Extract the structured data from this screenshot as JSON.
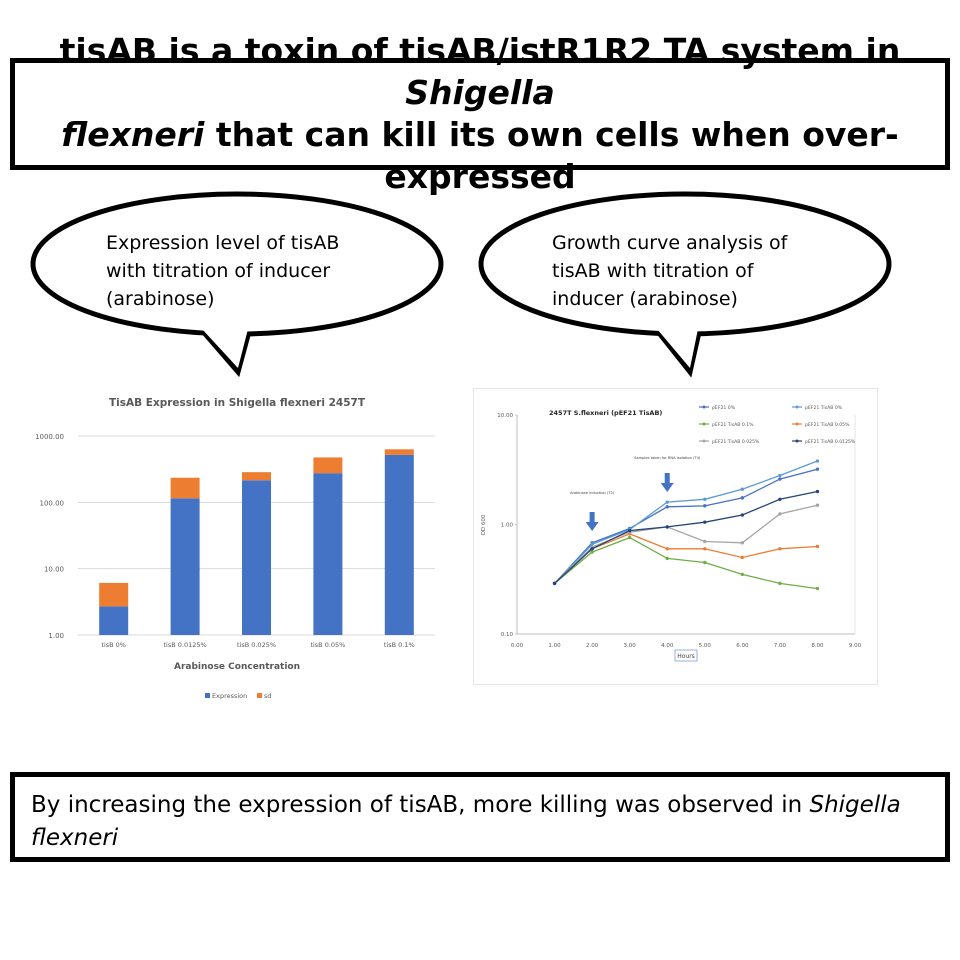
{
  "title": {
    "part1": "tisAB is a toxin of tisAB/istR1R2 TA system in ",
    "italic1": "Shigella",
    "italic2": "flexneri",
    "part2": " that can kill its own cells when over-expressed"
  },
  "bubble_left": {
    "line1": "Expression level of tisAB",
    "line2": "with titration of inducer",
    "line3": "(arabinose)"
  },
  "bubble_right": {
    "line1": "Growth curve analysis of",
    "line2": "tisAB with titration of",
    "line3": "inducer (arabinose)"
  },
  "conclusion": {
    "text": "By increasing the expression of tisAB, more killing was observed in ",
    "italic1": "Shigella",
    "italic2": "flexneri"
  },
  "chart_data": [
    {
      "type": "bar",
      "title": "TisAB Expression in Shigella flexneri 2457T",
      "xlabel": "Arabinose Concentration",
      "ylabel": "",
      "yscale": "log",
      "ylim": [
        1,
        1000
      ],
      "yticks": [
        "1.00",
        "10.00",
        "100.00",
        "1000.00"
      ],
      "stacked": true,
      "categories": [
        "tisB 0%",
        "tisB 0.0125%",
        "tisB 0.025%",
        "tisB 0.05%",
        "tisB 0.1%"
      ],
      "series": [
        {
          "name": "Expression",
          "color": "#4472c4",
          "values": [
            2.7,
            115,
            215,
            275,
            520
          ]
        },
        {
          "name": "sd",
          "color": "#ed7d31",
          "values": [
            3.4,
            120,
            70,
            200,
            110
          ]
        }
      ],
      "grid": true,
      "legend": "bottom"
    },
    {
      "type": "line",
      "title": "2457T S.flexneri (pEF21 TisAB)",
      "xlabel": "Hours",
      "ylabel": "OD 600",
      "yscale": "log",
      "xlim": [
        0,
        9
      ],
      "ylim": [
        0.1,
        10
      ],
      "xticks": [
        "0.00",
        "1.00",
        "2.00",
        "3.00",
        "4.00",
        "5.00",
        "6.00",
        "7.00",
        "8.00",
        "9.00"
      ],
      "yticks": [
        "0.10",
        "1.00",
        "10.00"
      ],
      "annotations": [
        {
          "text": "Arabinose induction (T2)",
          "x": 2
        },
        {
          "text": "Samples taken for RNA isolation (T4)",
          "x": 4
        }
      ],
      "legend": "top-right",
      "series": [
        {
          "name": "pEF21 0%",
          "color": "#4472c4",
          "x": [
            1,
            2,
            3,
            4,
            5,
            6,
            7,
            8
          ],
          "y": [
            0.29,
            0.68,
            0.92,
            1.45,
            1.48,
            1.75,
            2.6,
            3.2
          ]
        },
        {
          "name": "pEF21 TisAB 0%",
          "color": "#5b9bd5",
          "x": [
            1,
            2,
            3,
            4,
            5,
            6,
            7,
            8
          ],
          "y": [
            0.29,
            0.66,
            0.9,
            1.6,
            1.7,
            2.1,
            2.8,
            3.8
          ]
        },
        {
          "name": "pEF21 TisAB 0.1%",
          "color": "#70ad47",
          "x": [
            1,
            2,
            3,
            4,
            5,
            6,
            7,
            8
          ],
          "y": [
            0.29,
            0.56,
            0.76,
            0.49,
            0.45,
            0.35,
            0.29,
            0.26
          ]
        },
        {
          "name": "pEF21 TisAB 0.05%",
          "color": "#ed7d31",
          "x": [
            1,
            2,
            3,
            4,
            5,
            6,
            7,
            8
          ],
          "y": [
            0.29,
            0.6,
            0.82,
            0.6,
            0.6,
            0.5,
            0.6,
            0.63
          ]
        },
        {
          "name": "pEF21 TisAB 0.025%",
          "color": "#a5a5a5",
          "x": [
            1,
            2,
            3,
            4,
            5,
            6,
            7,
            8
          ],
          "y": [
            0.29,
            0.62,
            0.85,
            0.95,
            0.7,
            0.68,
            1.25,
            1.5
          ]
        },
        {
          "name": "pEF21 TisAB 0.0125%",
          "color": "#264478",
          "x": [
            1,
            2,
            3,
            4,
            5,
            6,
            7,
            8
          ],
          "y": [
            0.29,
            0.6,
            0.88,
            0.95,
            1.05,
            1.22,
            1.7,
            2.0
          ]
        }
      ]
    }
  ]
}
